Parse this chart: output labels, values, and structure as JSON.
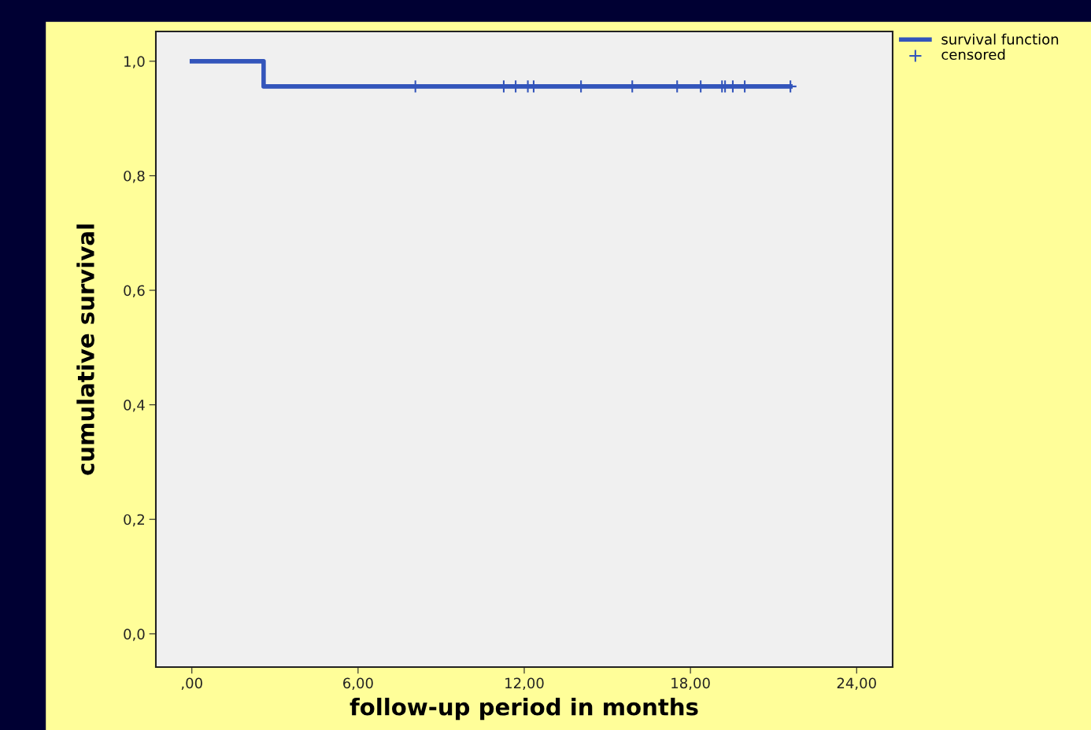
{
  "chart_data": {
    "type": "step",
    "xlabel": "follow-up period in months",
    "ylabel": "cumulative survival",
    "series": [
      {
        "name": "survival function",
        "color": "#3355bb",
        "x": [
          0,
          2.59,
          21.61
        ],
        "values": [
          1.0,
          0.956,
          0.956
        ],
        "marker": "none"
      },
      {
        "name": "censored",
        "type": "scatter",
        "color": "#3355bb",
        "x": [
          8.07,
          11.26,
          11.69,
          12.13,
          12.34,
          14.05,
          15.9,
          17.52,
          18.37,
          19.14,
          19.25,
          19.53,
          19.96,
          21.61
        ],
        "values": [
          0.956,
          0.956,
          0.956,
          0.956,
          0.956,
          0.956,
          0.956,
          0.956,
          0.956,
          0.956,
          0.956,
          0.956,
          0.956,
          0.956
        ],
        "marker": "cross"
      }
    ],
    "xlim": [
      -1.3,
      25.3
    ],
    "ylim": [
      -0.058,
      1.052
    ],
    "xticks": [
      {
        "value": 0,
        "label": ",00"
      },
      {
        "value": 6,
        "label": "6,00"
      },
      {
        "value": 12,
        "label": "12,00"
      },
      {
        "value": 18,
        "label": "18,00"
      },
      {
        "value": 24,
        "label": "24,00"
      }
    ],
    "yticks": [
      {
        "value": 0,
        "label": "0,0"
      },
      {
        "value": 0.2,
        "label": "0,2"
      },
      {
        "value": 0.4,
        "label": "0,4"
      },
      {
        "value": 0.6,
        "label": "0,6"
      },
      {
        "value": 0.8,
        "label": "0,8"
      },
      {
        "value": 1.0,
        "label": "1,0"
      }
    ],
    "grid": false,
    "legend": "top right"
  }
}
